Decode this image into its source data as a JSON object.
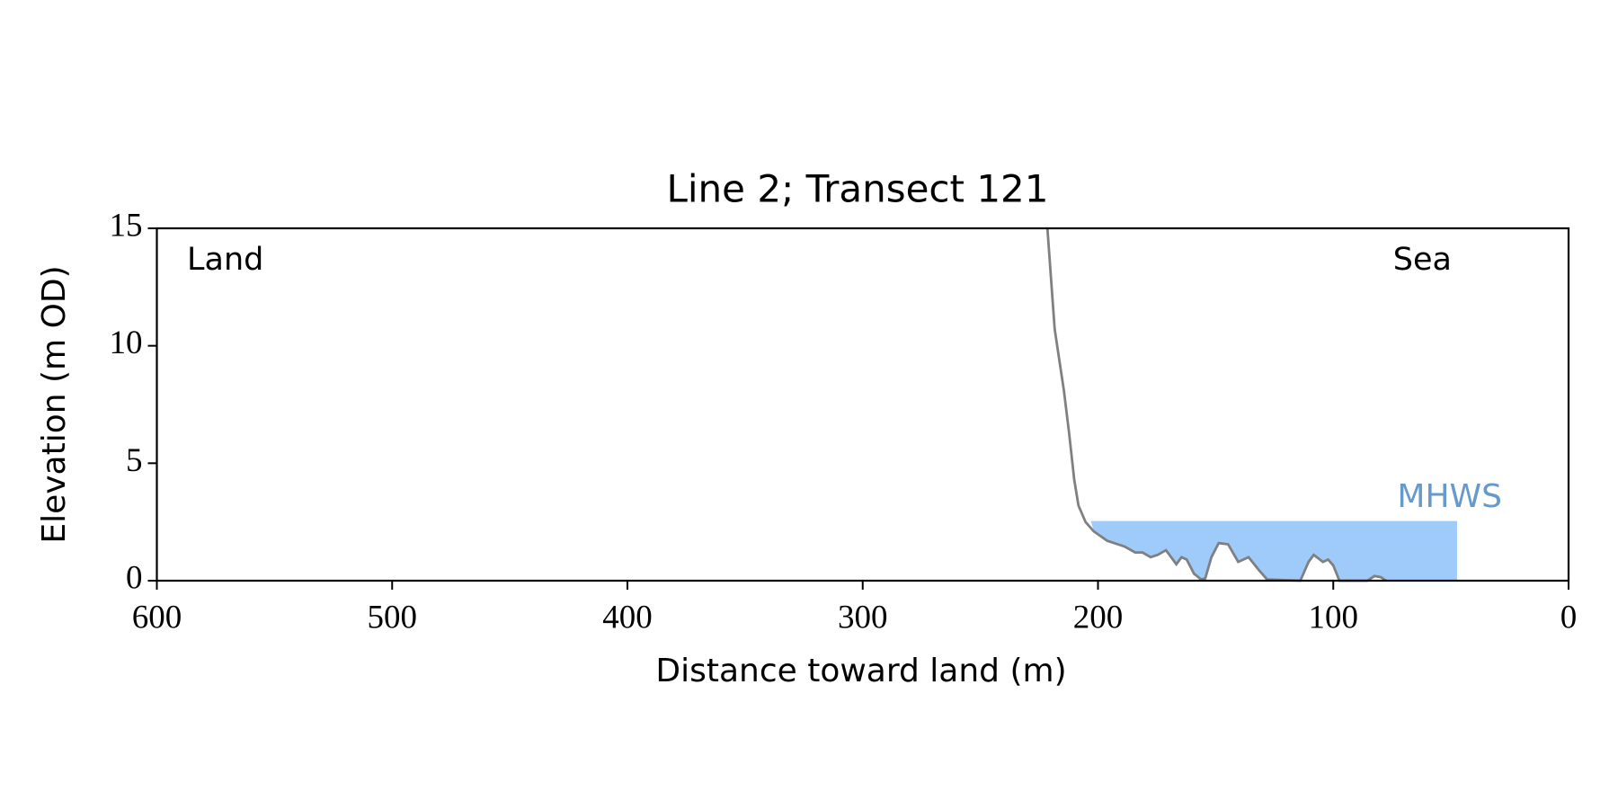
{
  "chart_data": {
    "type": "line",
    "title": "Line 2; Transect 121",
    "x_label": "Distance toward land (m)",
    "y_label": "Elevation (m OD)",
    "xlim": [
      600,
      0
    ],
    "ylim": [
      0,
      15
    ],
    "xticks": [
      600,
      500,
      400,
      300,
      200,
      100,
      0
    ],
    "yticks": [
      0,
      5,
      10,
      15
    ],
    "annotations": [
      "Land",
      "Sea"
    ],
    "series": [
      {
        "name": "profile",
        "color": "#808080",
        "x": [
          221.5,
          219.7,
          218.4,
          214.5,
          212.3,
          210.1,
          208.3,
          205.3,
          201.8,
          196.1,
          188.6,
          184.2,
          181.1,
          177.6,
          174.6,
          171.1,
          166.7,
          164.5,
          162.3,
          159.2,
          156.1,
          154.4,
          151.8,
          148.7,
          144.7,
          140.4,
          136,
          131.6,
          128.1,
          114,
          110.5,
          108.3,
          104.4,
          102.2,
          100,
          97.4,
          85.5,
          82.5,
          79.8,
          77.6
        ],
        "values": [
          15,
          12.5,
          10.7,
          8.1,
          6.3,
          4.3,
          3.2,
          2.5,
          2.1,
          1.7,
          1.45,
          1.2,
          1.2,
          1.0,
          1.1,
          1.3,
          0.7,
          1.0,
          0.9,
          0.3,
          0.05,
          0.1,
          1.0,
          1.6,
          1.55,
          0.8,
          1.0,
          0.45,
          0.05,
          0,
          0.8,
          1.1,
          0.8,
          0.9,
          0.65,
          0,
          0,
          0.2,
          0.15,
          0
        ]
      }
    ],
    "mhws": {
      "label": "MHWS",
      "level": 2.54,
      "x_start": 203,
      "x_end": 47.4,
      "color": "#9ecbf9",
      "label_color": "#6699cc"
    }
  }
}
